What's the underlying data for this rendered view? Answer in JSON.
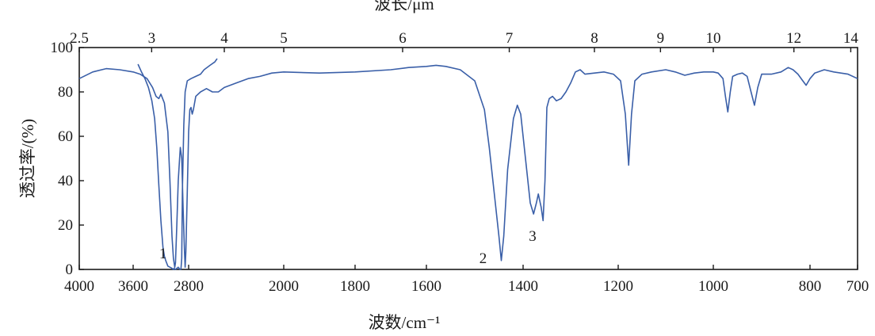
{
  "chart_data": {
    "type": "line",
    "top_axis": {
      "label": "波长/μm",
      "ticks": [
        "2.5",
        "3",
        "4",
        "5",
        "6",
        "7",
        "8",
        "9",
        "10",
        "12",
        "14"
      ],
      "tick_values_cm1": [
        4000,
        3333.3,
        2500,
        2000,
        1666.7,
        1428.6,
        1250,
        1111.1,
        1000,
        833.3,
        714.3
      ]
    },
    "x_axis": {
      "label": "波数/cm⁻¹",
      "ticks": [
        "4000",
        "3600",
        "2800",
        "2000",
        "1800",
        "1600",
        "1400",
        "1200",
        "1000",
        "800",
        "700"
      ],
      "tick_values": [
        4000,
        3600,
        2800,
        2000,
        1800,
        1600,
        1400,
        1200,
        1000,
        800,
        700
      ],
      "scale": "piecewise (compressed above 2000 cm⁻¹)",
      "reversed": true
    },
    "y_axis": {
      "label": "透过率/(%)",
      "ticks": [
        "0",
        "20",
        "40",
        "60",
        "80",
        "100"
      ],
      "ylim": [
        0,
        100
      ]
    },
    "grid": false,
    "series": [
      {
        "color": "#3a5fa8",
        "points": [
          [
            4000,
            86
          ],
          [
            3900,
            89
          ],
          [
            3800,
            90.5
          ],
          [
            3700,
            90
          ],
          [
            3600,
            89
          ],
          [
            3500,
            88
          ],
          [
            3400,
            86
          ],
          [
            3320,
            82
          ],
          [
            3270,
            78
          ],
          [
            3230,
            77
          ],
          [
            3200,
            79
          ],
          [
            3150,
            75
          ],
          [
            3100,
            62
          ],
          [
            3070,
            40
          ],
          [
            3040,
            15
          ],
          [
            3020,
            5
          ],
          [
            3000,
            1
          ],
          [
            2990,
            3
          ],
          [
            2970,
            20
          ],
          [
            2950,
            40
          ],
          [
            2930,
            50
          ],
          [
            2920,
            55
          ],
          [
            2900,
            50
          ],
          [
            2880,
            28
          ],
          [
            2860,
            8
          ],
          [
            2850,
            1
          ],
          [
            2840,
            8
          ],
          [
            2820,
            35
          ],
          [
            2800,
            62
          ],
          [
            2790,
            72
          ],
          [
            2780,
            73
          ],
          [
            2770,
            70
          ],
          [
            2760,
            72
          ],
          [
            2740,
            78
          ],
          [
            2700,
            80
          ],
          [
            2650,
            81.5
          ],
          [
            2600,
            80
          ],
          [
            2550,
            80
          ],
          [
            2500,
            82
          ],
          [
            2400,
            84
          ],
          [
            2300,
            86
          ],
          [
            2200,
            87
          ],
          [
            2100,
            88.5
          ],
          [
            2000,
            89
          ],
          [
            1900,
            88.5
          ],
          [
            1800,
            89
          ],
          [
            1700,
            90
          ],
          [
            1650,
            91
          ],
          [
            1600,
            91.5
          ],
          [
            1580,
            92
          ],
          [
            1560,
            91.5
          ],
          [
            1530,
            90
          ],
          [
            1500,
            85
          ],
          [
            1480,
            72
          ],
          [
            1470,
            55
          ],
          [
            1460,
            35
          ],
          [
            1450,
            15
          ],
          [
            1445,
            4
          ],
          [
            1440,
            15
          ],
          [
            1432,
            45
          ],
          [
            1420,
            68
          ],
          [
            1412,
            74
          ],
          [
            1405,
            70
          ],
          [
            1395,
            50
          ],
          [
            1385,
            30
          ],
          [
            1378,
            25
          ],
          [
            1372,
            30
          ],
          [
            1368,
            34
          ],
          [
            1362,
            28
          ],
          [
            1358,
            22
          ],
          [
            1354,
            40
          ],
          [
            1350,
            73
          ],
          [
            1345,
            77
          ],
          [
            1338,
            78
          ],
          [
            1330,
            76
          ],
          [
            1320,
            77
          ],
          [
            1310,
            80
          ],
          [
            1300,
            84
          ],
          [
            1290,
            89
          ],
          [
            1280,
            90
          ],
          [
            1270,
            88
          ],
          [
            1250,
            88.5
          ],
          [
            1230,
            89
          ],
          [
            1210,
            88
          ],
          [
            1195,
            85
          ],
          [
            1185,
            70
          ],
          [
            1178,
            47
          ],
          [
            1172,
            70
          ],
          [
            1165,
            85
          ],
          [
            1150,
            88
          ],
          [
            1130,
            89
          ],
          [
            1100,
            90
          ],
          [
            1080,
            89
          ],
          [
            1060,
            87.5
          ],
          [
            1040,
            88.5
          ],
          [
            1020,
            89
          ],
          [
            1000,
            89
          ],
          [
            990,
            88.5
          ],
          [
            980,
            86
          ],
          [
            975,
            78
          ],
          [
            970,
            71
          ],
          [
            965,
            80
          ],
          [
            960,
            87
          ],
          [
            950,
            88
          ],
          [
            940,
            88.5
          ],
          [
            930,
            87
          ],
          [
            922,
            80
          ],
          [
            915,
            74
          ],
          [
            908,
            82
          ],
          [
            900,
            88
          ],
          [
            880,
            88
          ],
          [
            860,
            89
          ],
          [
            845,
            91
          ],
          [
            835,
            90
          ],
          [
            825,
            88
          ],
          [
            815,
            85
          ],
          [
            808,
            83
          ],
          [
            800,
            86
          ],
          [
            790,
            88.5
          ],
          [
            770,
            90
          ],
          [
            750,
            89
          ],
          [
            720,
            88
          ],
          [
            700,
            86
          ]
        ]
      },
      {
        "color": "#3a5fa8",
        "points": [
          [
            3530,
            92.5
          ],
          [
            3480,
            89
          ],
          [
            3430,
            86
          ],
          [
            3380,
            82
          ],
          [
            3330,
            76
          ],
          [
            3290,
            68
          ],
          [
            3260,
            55
          ],
          [
            3230,
            38
          ],
          [
            3200,
            22
          ],
          [
            3170,
            10
          ],
          [
            3150,
            6
          ],
          [
            3130,
            4
          ],
          [
            3100,
            1.5
          ],
          [
            3070,
            1
          ],
          [
            3040,
            0.5
          ],
          [
            3020,
            0
          ],
          [
            3010,
            0.5
          ],
          [
            2990,
            0
          ],
          [
            2970,
            0.5
          ],
          [
            2950,
            1
          ],
          [
            2925,
            0
          ],
          [
            2915,
            0
          ],
          [
            2910,
            0.5
          ],
          [
            2900,
            5
          ],
          [
            2890,
            35
          ],
          [
            2870,
            65
          ],
          [
            2850,
            80
          ],
          [
            2820,
            85
          ],
          [
            2780,
            86
          ],
          [
            2740,
            87
          ],
          [
            2700,
            88
          ],
          [
            2670,
            90
          ],
          [
            2620,
            92
          ],
          [
            2580,
            93.5
          ],
          [
            2560,
            95
          ]
        ]
      }
    ],
    "annotations": [
      {
        "text": "1",
        "x": 3010
      },
      {
        "text": "2",
        "x": 1450
      },
      {
        "text": "3",
        "x": 1370
      }
    ]
  }
}
